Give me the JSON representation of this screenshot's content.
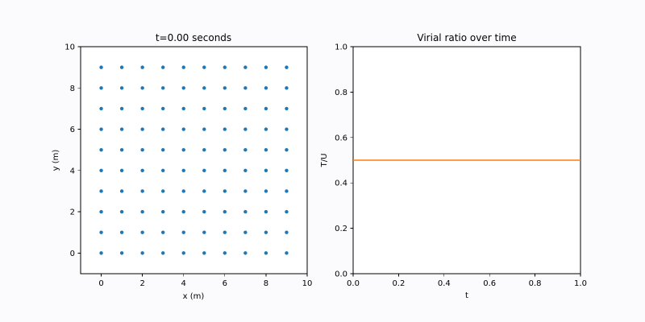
{
  "chart_data": [
    {
      "type": "scatter",
      "title": "t=0.00 seconds",
      "xlabel": "x (m)",
      "ylabel": "y (m)",
      "xlim": [
        -1,
        10
      ],
      "ylim": [
        -1,
        10
      ],
      "xticks": [
        0,
        2,
        4,
        6,
        8,
        10
      ],
      "yticks": [
        0,
        2,
        4,
        6,
        8,
        10
      ],
      "grid": false,
      "marker_color": "#1f77b4",
      "grid_points": {
        "x": [
          0,
          1,
          2,
          3,
          4,
          5,
          6,
          7,
          8,
          9
        ],
        "y": [
          0,
          1,
          2,
          3,
          4,
          5,
          6,
          7,
          8,
          9
        ]
      }
    },
    {
      "type": "line",
      "title": "Virial ratio over time",
      "xlabel": "t",
      "ylabel": "T/U",
      "xlim": [
        0,
        1
      ],
      "ylim": [
        0,
        1
      ],
      "xticks": [
        0.0,
        0.2,
        0.4,
        0.6,
        0.8,
        1.0
      ],
      "yticks": [
        0.0,
        0.2,
        0.4,
        0.6,
        0.8,
        1.0
      ],
      "grid": false,
      "series": [
        {
          "color": "#ff7f0e",
          "x": [
            0,
            1
          ],
          "y": [
            0.5,
            0.5
          ]
        }
      ]
    }
  ]
}
